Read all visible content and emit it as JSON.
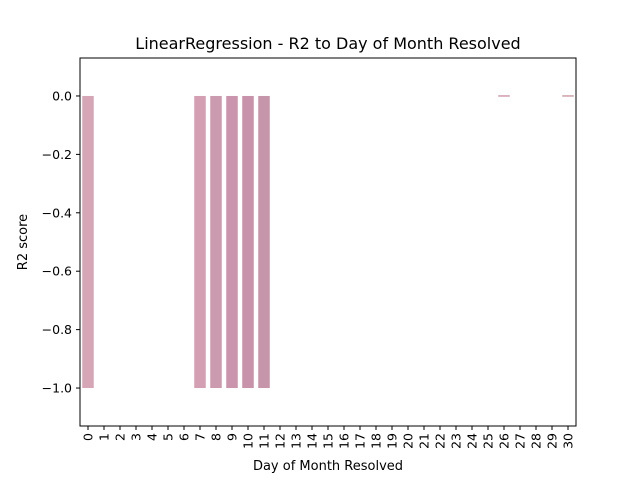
{
  "chart_data": {
    "type": "bar",
    "title": "LinearRegression - R2 to Day of Month Resolved",
    "xlabel": "Day of Month Resolved",
    "ylabel": "R2 score",
    "categories": [
      "0",
      "1",
      "2",
      "3",
      "4",
      "5",
      "6",
      "7",
      "8",
      "9",
      "10",
      "11",
      "12",
      "13",
      "14",
      "15",
      "16",
      "17",
      "18",
      "19",
      "20",
      "21",
      "22",
      "23",
      "24",
      "25",
      "26",
      "27",
      "28",
      "29",
      "30"
    ],
    "values": [
      -1.0,
      0,
      0,
      0,
      0,
      0,
      0,
      -1.0,
      -1.0,
      -1.0,
      -1.0,
      -1.0,
      0,
      0,
      0,
      0,
      0,
      0,
      0,
      0,
      0,
      0,
      0,
      0,
      0,
      0,
      0.001,
      0,
      0,
      0,
      0.001
    ],
    "ylim": [
      -1.13,
      0.13
    ],
    "yticks": [
      0.0,
      -0.2,
      -0.4,
      -0.6,
      -0.8,
      -1.0
    ],
    "ytick_labels": [
      "0.0",
      "−0.2",
      "−0.4",
      "−0.6",
      "−0.8",
      "−1.0"
    ],
    "grid": false,
    "colors": [
      "#d6a6b6",
      "#d4a5b7",
      "#d1a2b2",
      "#cfa0b0",
      "#cda0b2",
      "#cb9db0",
      "#cc9ab0",
      "#d49fb3",
      "#cc9aae",
      "#c994ac",
      "#c893aa",
      "#c695a9",
      "#c390a6",
      "#c38fa6",
      "#c18ca4",
      "#c08ba3",
      "#bd89a2",
      "#bc88a1",
      "#b9869e",
      "#b7849c",
      "#b5829b",
      "#b3809a",
      "#b27f98",
      "#b07d97",
      "#ae7b95",
      "#ad7a94",
      "#b76b80",
      "#a97891",
      "#a7768f",
      "#a5748e",
      "#b4717e"
    ]
  }
}
